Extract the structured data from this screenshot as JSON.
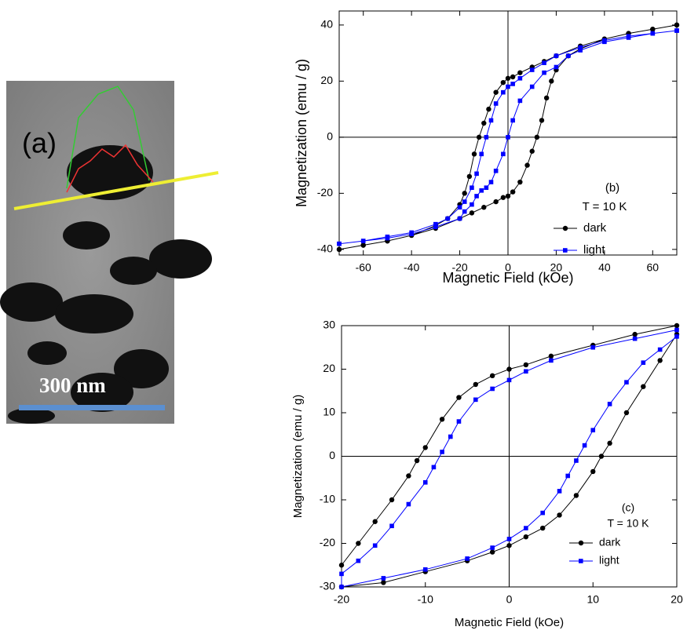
{
  "image_panel": {
    "label": "(a)",
    "scale_bar": "300 nm"
  },
  "chart_data": [
    {
      "type": "line",
      "annotation": "(b)",
      "legend_title": "T = 10 K",
      "x_label": "Magnetic Field (kOe)",
      "y_label": "Magnetization (emu / g)",
      "xlim": [
        -70,
        70
      ],
      "xticks": [
        -60,
        -40,
        -20,
        0,
        20,
        40,
        60
      ],
      "ylim": [
        -42,
        45
      ],
      "yticks": [
        -40,
        -20,
        0,
        20,
        40
      ],
      "series": [
        {
          "name": "dark",
          "color": "#000000",
          "marker": "circle",
          "x": [
            70,
            60,
            50,
            40,
            30,
            20,
            15,
            10,
            5,
            2,
            0,
            -2,
            -5,
            -8,
            -10,
            -12,
            -14,
            -16,
            -18,
            -20,
            -25,
            -30,
            -40,
            -50,
            -60,
            -70,
            -70,
            -60,
            -50,
            -40,
            -30,
            -20,
            -15,
            -10,
            -5,
            -2,
            0,
            2,
            5,
            8,
            10,
            12,
            14,
            16,
            18,
            20,
            25,
            30,
            40,
            50,
            60,
            70
          ],
          "values": [
            40,
            38.5,
            37,
            35,
            32.5,
            29,
            27,
            25,
            23,
            21.5,
            21,
            19.5,
            16,
            10,
            5,
            0,
            -6,
            -14,
            -20,
            -24,
            -29,
            -31.5,
            -35,
            -37,
            -38.5,
            -40,
            -40,
            -38.5,
            -37,
            -35,
            -32.5,
            -29,
            -27,
            -25,
            -23,
            -21.5,
            -21,
            -19.5,
            -16,
            -10,
            -5,
            0,
            6,
            14,
            20,
            24,
            29,
            31.5,
            35,
            37,
            38.5,
            40
          ]
        },
        {
          "name": "light",
          "color": "#0000ff",
          "marker": "square",
          "x": [
            70,
            60,
            50,
            40,
            30,
            20,
            15,
            10,
            5,
            2,
            0,
            -2,
            -5,
            -7,
            -9,
            -11,
            -13,
            -15,
            -18,
            -20,
            -25,
            -30,
            -40,
            -50,
            -60,
            -70,
            -70,
            -60,
            -50,
            -40,
            -30,
            -20,
            -18,
            -15,
            -13,
            -11,
            -9,
            -7,
            -5,
            -2,
            0,
            2,
            5,
            10,
            15,
            20,
            25,
            30,
            40,
            50,
            60,
            70
          ],
          "values": [
            38,
            37,
            36,
            34.5,
            32,
            29,
            26.5,
            24,
            21,
            19,
            18,
            16,
            12,
            6,
            0,
            -6,
            -13,
            -18,
            -23,
            -25,
            -29,
            -31,
            -34,
            -35.5,
            -37,
            -38,
            -38,
            -37,
            -36,
            -34.5,
            -32,
            -29,
            -26.5,
            -24,
            -21,
            -19,
            -18,
            -16,
            -12,
            -6,
            0,
            6,
            13,
            18,
            23,
            25,
            29,
            31,
            34,
            35.5,
            37,
            38
          ]
        }
      ]
    },
    {
      "type": "line",
      "annotation": "(c)",
      "legend_title": "T = 10 K",
      "x_label": "Magnetic Field (kOe)",
      "y_label": "Magnetization (emu / g)",
      "xlim": [
        -20,
        20
      ],
      "xticks": [
        -20,
        -10,
        0,
        10,
        20
      ],
      "ylim": [
        -30,
        30
      ],
      "yticks": [
        -30,
        -20,
        -10,
        0,
        10,
        20,
        30
      ],
      "series": [
        {
          "name": "dark",
          "color": "#000000",
          "marker": "circle",
          "x": [
            20,
            15,
            10,
            5,
            2,
            0,
            -2,
            -4,
            -6,
            -8,
            -10,
            -11,
            -12,
            -14,
            -16,
            -18,
            -20,
            -20,
            -15,
            -10,
            -5,
            -2,
            0,
            2,
            4,
            6,
            8,
            10,
            11,
            12,
            14,
            16,
            18,
            20
          ],
          "values": [
            30,
            28,
            25.5,
            23,
            21,
            20,
            18.5,
            16.5,
            13.5,
            8.5,
            2,
            -1,
            -4.5,
            -10,
            -15,
            -20,
            -25,
            -30,
            -29,
            -26.5,
            -24,
            -22,
            -20.5,
            -18.5,
            -16.5,
            -13.5,
            -9,
            -3.5,
            0,
            3,
            10,
            16,
            22,
            28
          ]
        },
        {
          "name": "light",
          "color": "#0000ff",
          "marker": "square",
          "x": [
            20,
            15,
            10,
            5,
            2,
            0,
            -2,
            -4,
            -6,
            -7,
            -8,
            -9,
            -10,
            -12,
            -14,
            -16,
            -18,
            -20,
            -20,
            -15,
            -10,
            -5,
            -2,
            0,
            2,
            4,
            6,
            7,
            8,
            9,
            10,
            12,
            14,
            16,
            18,
            20
          ],
          "values": [
            29,
            27,
            25,
            22,
            19.5,
            17.5,
            15.5,
            13,
            8,
            4.5,
            1,
            -2.5,
            -6,
            -11,
            -16,
            -20.5,
            -24,
            -27,
            -30,
            -28,
            -26,
            -23.5,
            -21,
            -19,
            -16.5,
            -13,
            -8,
            -4.5,
            -1,
            2.5,
            6,
            12,
            17,
            21.5,
            24.5,
            27.5
          ]
        }
      ]
    }
  ]
}
